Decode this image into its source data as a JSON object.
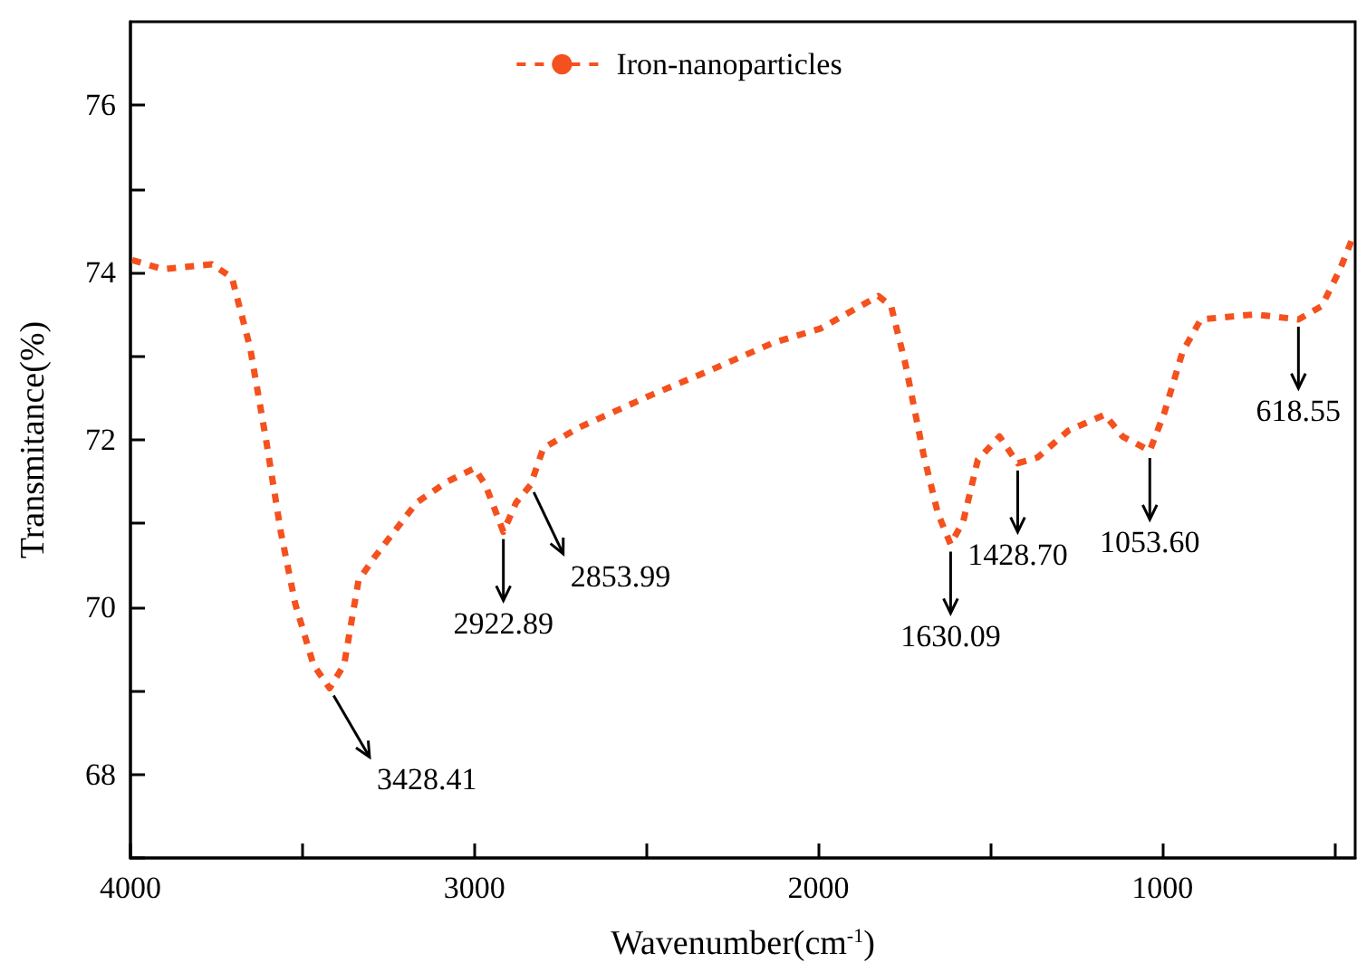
{
  "chart_data": {
    "type": "line",
    "xlabel": "Wavenumber(cm$^{-1}$)",
    "ylabel": "Transmitance(%)",
    "legend": "top",
    "grid": false,
    "marker": "none",
    "line_style": "dashed",
    "xlim": [
      4000,
      440
    ],
    "ylim": [
      67,
      77
    ],
    "xticks": [
      4000,
      {
        "value": 3500,
        "label": null
      },
      3000,
      {
        "value": 2500,
        "label": null
      },
      2000,
      {
        "value": 1500,
        "label": null
      },
      1000,
      {
        "value": 500,
        "label": null
      }
    ],
    "yticks": [
      {
        "value": 67,
        "label": null
      },
      68,
      {
        "value": 69,
        "label": null
      },
      70,
      {
        "value": 71,
        "label": null
      },
      72,
      {
        "value": 73,
        "label": null
      },
      74,
      {
        "value": 75,
        "label": null
      },
      76
    ],
    "series": [
      {
        "name": "Iron-nanoparticles",
        "color": "#f4511e",
        "x": [
          3995,
          3905,
          3763,
          3705,
          3652,
          3605,
          3563,
          3521,
          3468,
          3421,
          3379,
          3337,
          3290,
          3168,
          3079,
          3000,
          2968,
          2916,
          2879,
          2837,
          2800,
          2695,
          2484,
          2310,
          2132,
          1995,
          1826,
          1789,
          1747,
          1695,
          1653,
          1616,
          1579,
          1537,
          1474,
          1421,
          1363,
          1274,
          1168,
          1116,
          1037,
          995,
          942,
          889,
          732,
          605,
          537,
          484,
          442
        ],
        "values": [
          74.15,
          74.04,
          74.1,
          73.94,
          73.1,
          71.98,
          70.9,
          70.04,
          69.31,
          69.03,
          69.31,
          70.32,
          70.6,
          71.25,
          71.5,
          71.66,
          71.46,
          70.9,
          71.25,
          71.46,
          71.9,
          72.15,
          72.54,
          72.84,
          73.16,
          73.33,
          73.72,
          73.6,
          72.9,
          71.83,
          71.12,
          70.75,
          71.03,
          71.76,
          72.04,
          71.72,
          71.79,
          72.11,
          72.3,
          72.04,
          71.87,
          72.32,
          73.05,
          73.44,
          73.5,
          73.44,
          73.6,
          74.04,
          74.47
        ]
      }
    ],
    "annotations": [
      {
        "text": "3428.41",
        "x": 3421,
        "y": 69.03
      },
      {
        "text": "2922.89",
        "x": 2916,
        "y": 70.9
      },
      {
        "text": "2853.99",
        "x": 2837,
        "y": 71.46
      },
      {
        "text": "1630.09",
        "x": 1616,
        "y": 70.75
      },
      {
        "text": "1428.70",
        "x": 1421,
        "y": 71.72
      },
      {
        "text": "1053.60",
        "x": 1037,
        "y": 71.87
      },
      {
        "text": "618.55",
        "x": 605,
        "y": 73.44
      }
    ]
  }
}
